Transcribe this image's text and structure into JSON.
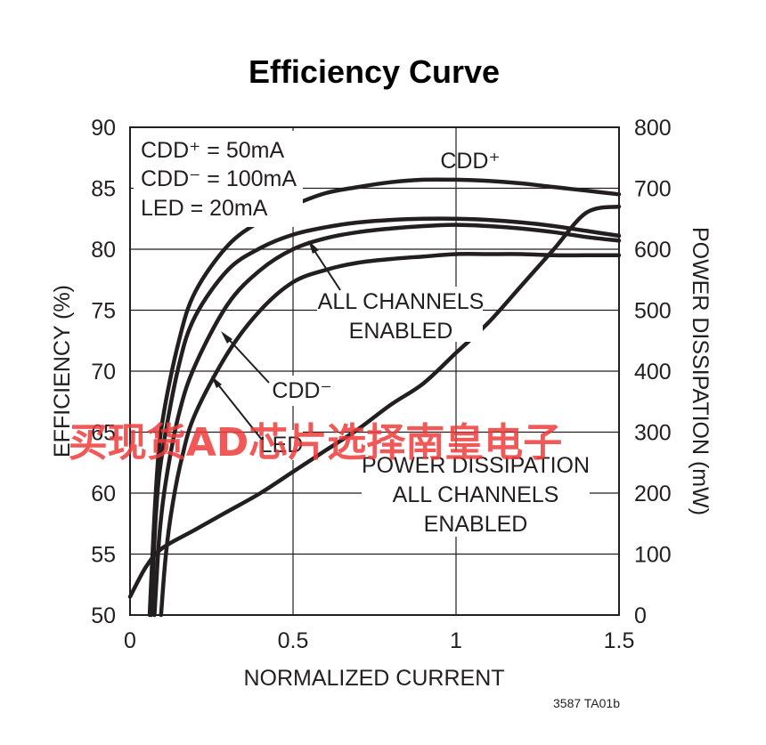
{
  "chart_data": {
    "type": "line",
    "title": "Efficiency Curve",
    "xlabel": "NORMALIZED CURRENT",
    "ylabel": "EFFICIENCY (%)",
    "y2label": "POWER DISSIPATION (mW)",
    "xlim": [
      0,
      1.5
    ],
    "ylim": [
      50,
      90
    ],
    "y2lim": [
      0,
      800
    ],
    "xticks": [
      "0",
      "0.5",
      "1",
      "1.5"
    ],
    "xtick_values": [
      0,
      0.5,
      1,
      1.5
    ],
    "yticks": [
      "50",
      "55",
      "60",
      "65",
      "70",
      "75",
      "80",
      "85",
      "90"
    ],
    "ytick_values": [
      50,
      55,
      60,
      65,
      70,
      75,
      80,
      85,
      90
    ],
    "y2ticks": [
      "0",
      "100",
      "200",
      "300",
      "400",
      "500",
      "600",
      "700",
      "800"
    ],
    "y2tick_values": [
      0,
      100,
      200,
      300,
      400,
      500,
      600,
      700,
      800
    ],
    "grid": true,
    "conditions": [
      "CDD⁺ = 50mA",
      "CDD⁻ = 100mA",
      "LED = 20mA"
    ],
    "series": [
      {
        "name": "CDD⁺",
        "axis": "left",
        "x": [
          0.06,
          0.08,
          0.1,
          0.15,
          0.2,
          0.3,
          0.4,
          0.5,
          0.6,
          0.7,
          0.8,
          0.9,
          1.0,
          1.1,
          1.2,
          1.3,
          1.4,
          1.5
        ],
        "y": [
          50,
          60.5,
          66,
          72.5,
          76.5,
          80.3,
          82.3,
          83.6,
          84.6,
          85.1,
          85.5,
          85.7,
          85.7,
          85.6,
          85.4,
          85.1,
          84.8,
          84.5
        ]
      },
      {
        "name": "ALL CHANNELS ENABLED",
        "axis": "left",
        "x": [
          0.065,
          0.08,
          0.1,
          0.15,
          0.2,
          0.3,
          0.4,
          0.5,
          0.6,
          0.7,
          0.8,
          0.9,
          1.0,
          1.1,
          1.2,
          1.3,
          1.4,
          1.5
        ],
        "y": [
          50,
          58.5,
          63.5,
          70.5,
          74.5,
          78.3,
          80.1,
          81.2,
          81.8,
          82.2,
          82.4,
          82.5,
          82.5,
          82.4,
          82.2,
          81.9,
          81.5,
          81.1
        ]
      },
      {
        "name": "CDD⁻",
        "axis": "left",
        "x": [
          0.075,
          0.09,
          0.11,
          0.15,
          0.2,
          0.3,
          0.4,
          0.5,
          0.6,
          0.7,
          0.8,
          0.9,
          1.0,
          1.1,
          1.2,
          1.3,
          1.4,
          1.5
        ],
        "y": [
          50,
          56.5,
          61,
          66.5,
          70.5,
          75.5,
          78.3,
          80,
          80.9,
          81.4,
          81.7,
          81.9,
          82,
          81.9,
          81.7,
          81.4,
          81,
          80.7
        ]
      },
      {
        "name": "LED",
        "axis": "left",
        "x": [
          0.095,
          0.11,
          0.13,
          0.16,
          0.2,
          0.3,
          0.4,
          0.5,
          0.6,
          0.7,
          0.8,
          0.9,
          1.0,
          1.1,
          1.2,
          1.3,
          1.4,
          1.5
        ],
        "y": [
          50,
          55,
          59,
          63,
          66.5,
          71.5,
          75,
          77.3,
          78.3,
          78.9,
          79.2,
          79.4,
          79.6,
          79.6,
          79.6,
          79.5,
          79.5,
          79.5
        ]
      },
      {
        "name": "POWER DISSIPATION ALL CHANNELS ENABLED",
        "axis": "right",
        "x": [
          0,
          0.05,
          0.1,
          0.2,
          0.3,
          0.4,
          0.5,
          0.6,
          0.7,
          0.8,
          0.9,
          1.0,
          1.1,
          1.2,
          1.3,
          1.4,
          1.5
        ],
        "y": [
          30,
          80,
          110,
          140,
          170,
          200,
          235,
          270,
          305,
          345,
          380,
          430,
          480,
          540,
          600,
          660,
          670
        ]
      }
    ],
    "annotations": {
      "cdd_plus": "CDD⁺",
      "all_channels_1": "ALL CHANNELS",
      "all_channels_2": "ENABLED",
      "cdd_minus": "CDD⁻",
      "led": "LED",
      "power_1": "POWER DISSIPATION",
      "power_2": "ALL CHANNELS",
      "power_3": "ENABLED"
    },
    "figure_code": "3587 TA01b"
  },
  "watermark": "买现货AD芯片选择南皇电子",
  "colors": {
    "line": "#231f20",
    "watermark": "#ef3b3b"
  }
}
